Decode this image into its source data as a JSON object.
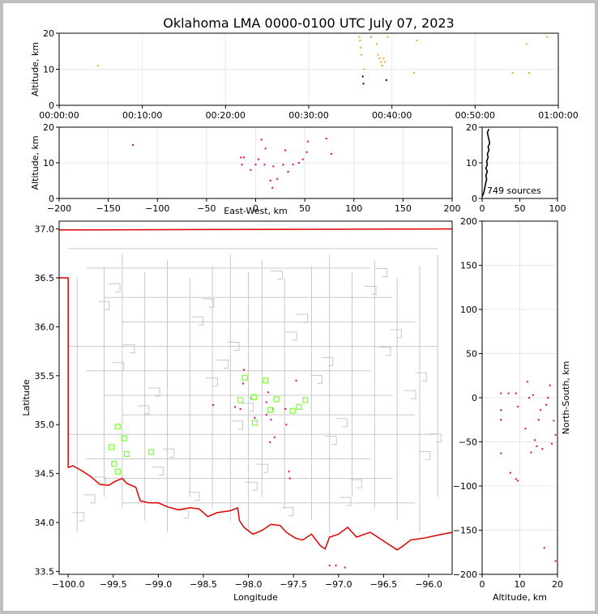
{
  "title": "Oklahoma LMA 0000-0100 UTC July 07, 2023",
  "colors": {
    "frame": "#c0c0c0",
    "state_border": "#e00000",
    "county": "#c8c8c8",
    "station": "#80ff40",
    "source": "#e0006a",
    "early_source": "#ffa030",
    "grid": "#e8e8e8"
  },
  "chart_data": [
    {
      "id": "time-altitude",
      "type": "scatter",
      "ylabel": "Altitude, km",
      "xlim": [
        "00:00:00",
        "01:00:00"
      ],
      "x_ticks": [
        "00:00:00",
        "00:10:00",
        "00:20:00",
        "00:30:00",
        "00:40:00",
        "00:50:00",
        "01:00:00"
      ],
      "ylim": [
        0,
        20
      ],
      "y_ticks": [
        "0",
        "10",
        "20"
      ],
      "points": [
        {
          "t": "00:04:40",
          "alt": 11
        },
        {
          "t": "00:36:05",
          "alt": 19
        },
        {
          "t": "00:36:10",
          "alt": 18
        },
        {
          "t": "00:36:15",
          "alt": 16
        },
        {
          "t": "00:36:20",
          "alt": 14
        },
        {
          "t": "00:36:30",
          "alt": 8
        },
        {
          "t": "00:36:35",
          "alt": 6
        },
        {
          "t": "00:36:40",
          "alt": 10
        },
        {
          "t": "00:37:30",
          "alt": 19
        },
        {
          "t": "00:38:10",
          "alt": 17
        },
        {
          "t": "00:38:20",
          "alt": 14
        },
        {
          "t": "00:38:30",
          "alt": 13
        },
        {
          "t": "00:38:40",
          "alt": 12
        },
        {
          "t": "00:38:50",
          "alt": 11
        },
        {
          "t": "00:39:00",
          "alt": 13
        },
        {
          "t": "00:39:10",
          "alt": 12
        },
        {
          "t": "00:39:20",
          "alt": 7
        },
        {
          "t": "00:39:30",
          "alt": 19
        },
        {
          "t": "00:42:40",
          "alt": 9
        },
        {
          "t": "00:43:00",
          "alt": 18
        },
        {
          "t": "00:54:30",
          "alt": 9
        },
        {
          "t": "00:56:10",
          "alt": 17
        },
        {
          "t": "00:58:40",
          "alt": 19
        },
        {
          "t": "00:56:30",
          "alt": 9
        }
      ]
    },
    {
      "id": "ew-altitude",
      "type": "scatter",
      "xlabel": "East-West, km",
      "ylabel": "Altitude, km",
      "xlim": [
        -200,
        200
      ],
      "x_ticks": [
        "−200",
        "−150",
        "−100",
        "−50",
        "0",
        "50",
        "100",
        "150",
        "200"
      ],
      "ylim": [
        0,
        20
      ],
      "y_ticks": [
        "0",
        "10",
        "20"
      ],
      "points": [
        {
          "ew": -125,
          "alt": 15
        },
        {
          "ew": -15,
          "alt": 11.5
        },
        {
          "ew": -12,
          "alt": 11.5
        },
        {
          "ew": -14,
          "alt": 9.5
        },
        {
          "ew": -5,
          "alt": 8
        },
        {
          "ew": 0,
          "alt": 9.5
        },
        {
          "ew": 3,
          "alt": 11
        },
        {
          "ew": 6,
          "alt": 16.5
        },
        {
          "ew": 9,
          "alt": 9.5
        },
        {
          "ew": 10,
          "alt": 14
        },
        {
          "ew": 15,
          "alt": 5
        },
        {
          "ew": 17,
          "alt": 3
        },
        {
          "ew": 18,
          "alt": 9
        },
        {
          "ew": 22,
          "alt": 5.5
        },
        {
          "ew": 28,
          "alt": 9.5
        },
        {
          "ew": 30,
          "alt": 13.5
        },
        {
          "ew": 33,
          "alt": 7.5
        },
        {
          "ew": 38,
          "alt": 9.5
        },
        {
          "ew": 44,
          "alt": 10
        },
        {
          "ew": 48,
          "alt": 11
        },
        {
          "ew": 52,
          "alt": 13
        },
        {
          "ew": 53,
          "alt": 16
        },
        {
          "ew": 72,
          "alt": 16.8
        },
        {
          "ew": 77,
          "alt": 12.5
        }
      ]
    },
    {
      "id": "altitude-histogram",
      "type": "line",
      "xlim": [
        0,
        100
      ],
      "x_ticks": [
        "0",
        "50",
        "100"
      ],
      "ylim": [
        0,
        20
      ],
      "y_ticks": [
        "0",
        "10",
        "20"
      ],
      "annotation": "749 sources",
      "profile": [
        {
          "alt": 0.5,
          "count": 0
        },
        {
          "alt": 1.5,
          "count": 2
        },
        {
          "alt": 2.5,
          "count": 3
        },
        {
          "alt": 3.5,
          "count": 4
        },
        {
          "alt": 4.5,
          "count": 5
        },
        {
          "alt": 5.5,
          "count": 6
        },
        {
          "alt": 6.5,
          "count": 5
        },
        {
          "alt": 7.5,
          "count": 7
        },
        {
          "alt": 8.5,
          "count": 5
        },
        {
          "alt": 9.5,
          "count": 7
        },
        {
          "alt": 10.5,
          "count": 6
        },
        {
          "alt": 11.5,
          "count": 8
        },
        {
          "alt": 12.5,
          "count": 7
        },
        {
          "alt": 13.5,
          "count": 9
        },
        {
          "alt": 14.5,
          "count": 8
        },
        {
          "alt": 15.5,
          "count": 10
        },
        {
          "alt": 16.5,
          "count": 9
        },
        {
          "alt": 17.5,
          "count": 8
        },
        {
          "alt": 18.5,
          "count": 7
        },
        {
          "alt": 19.5,
          "count": 9
        }
      ]
    },
    {
      "id": "plan-view",
      "type": "scatter",
      "xlabel": "Longitude",
      "ylabel": "Latitude",
      "xlim": [
        -100.1,
        -95.74
      ],
      "x_ticks": [
        "−100.0",
        "−99.5",
        "−99.0",
        "−98.5",
        "−98.0",
        "−97.5",
        "−97.0",
        "−96.5",
        "−96.0"
      ],
      "ylim": [
        33.47,
        37.08
      ],
      "y_ticks": [
        "33.5",
        "34.0",
        "34.5",
        "35.0",
        "35.5",
        "36.0",
        "36.5",
        "37.0"
      ],
      "stations": [
        {
          "lon": -99.45,
          "lat": 34.98
        },
        {
          "lon": -99.38,
          "lat": 34.86
        },
        {
          "lon": -99.52,
          "lat": 34.77
        },
        {
          "lon": -99.35,
          "lat": 34.7
        },
        {
          "lon": -99.49,
          "lat": 34.6
        },
        {
          "lon": -99.45,
          "lat": 34.52
        },
        {
          "lon": -99.08,
          "lat": 34.72
        },
        {
          "lon": -98.04,
          "lat": 35.48
        },
        {
          "lon": -98.09,
          "lat": 35.25
        },
        {
          "lon": -97.94,
          "lat": 35.28
        },
        {
          "lon": -97.93,
          "lat": 35.02
        },
        {
          "lon": -97.81,
          "lat": 35.45
        },
        {
          "lon": -97.76,
          "lat": 35.15
        },
        {
          "lon": -97.69,
          "lat": 35.26
        },
        {
          "lon": -97.51,
          "lat": 35.14
        },
        {
          "lon": -97.44,
          "lat": 35.18
        },
        {
          "lon": -97.37,
          "lat": 35.25
        }
      ],
      "sources": [
        {
          "lon": -98.39,
          "lat": 35.2
        },
        {
          "lon": -98.15,
          "lat": 35.18
        },
        {
          "lon": -98.09,
          "lat": 35.16
        },
        {
          "lon": -98.06,
          "lat": 35.42
        },
        {
          "lon": -98.05,
          "lat": 35.56
        },
        {
          "lon": -97.97,
          "lat": 35.27
        },
        {
          "lon": -97.93,
          "lat": 35.07
        },
        {
          "lon": -97.8,
          "lat": 35.23
        },
        {
          "lon": -97.8,
          "lat": 35.1
        },
        {
          "lon": -97.78,
          "lat": 35.33
        },
        {
          "lon": -97.76,
          "lat": 34.82
        },
        {
          "lon": -97.75,
          "lat": 35.05
        },
        {
          "lon": -97.73,
          "lat": 35.16
        },
        {
          "lon": -97.71,
          "lat": 34.87
        },
        {
          "lon": -97.59,
          "lat": 35.16
        },
        {
          "lon": -97.58,
          "lat": 35.0
        },
        {
          "lon": -97.55,
          "lat": 34.52
        },
        {
          "lon": -97.54,
          "lat": 34.45
        },
        {
          "lon": -97.47,
          "lat": 35.45
        },
        {
          "lon": -97.1,
          "lat": 33.56
        },
        {
          "lon": -97.03,
          "lat": 33.56
        },
        {
          "lon": -96.93,
          "lat": 33.54
        }
      ]
    },
    {
      "id": "altitude-ns",
      "type": "scatter",
      "xlabel": "Altitude, km",
      "ylabel": "North-South, km",
      "xlim": [
        0,
        20
      ],
      "x_ticks": [
        "0",
        "10",
        "20"
      ],
      "ylim": [
        -200,
        200
      ],
      "y_ticks": [
        "−200",
        "−150",
        "−100",
        "−50",
        "0",
        "50",
        "100",
        "150",
        "200"
      ],
      "points": [
        {
          "alt": 5,
          "ns": 5
        },
        {
          "alt": 5,
          "ns": -14
        },
        {
          "alt": 5,
          "ns": -25
        },
        {
          "alt": 5,
          "ns": -63
        },
        {
          "alt": 7,
          "ns": 5
        },
        {
          "alt": 7.5,
          "ns": -85
        },
        {
          "alt": 9,
          "ns": 5
        },
        {
          "alt": 9,
          "ns": -92
        },
        {
          "alt": 9.5,
          "ns": -10
        },
        {
          "alt": 9.5,
          "ns": -94
        },
        {
          "alt": 11.5,
          "ns": -35
        },
        {
          "alt": 12,
          "ns": 18
        },
        {
          "alt": 12.5,
          "ns": 0
        },
        {
          "alt": 13,
          "ns": -62
        },
        {
          "alt": 13.5,
          "ns": 3
        },
        {
          "alt": 14,
          "ns": -48
        },
        {
          "alt": 14.5,
          "ns": -55
        },
        {
          "alt": 15,
          "ns": -25
        },
        {
          "alt": 15.5,
          "ns": -14
        },
        {
          "alt": 16,
          "ns": -58
        },
        {
          "alt": 16.5,
          "ns": -170
        },
        {
          "alt": 17,
          "ns": -8
        },
        {
          "alt": 17.5,
          "ns": 0
        },
        {
          "alt": 18,
          "ns": 14
        },
        {
          "alt": 18.5,
          "ns": -52
        },
        {
          "alt": 19,
          "ns": -26
        },
        {
          "alt": 19.5,
          "ns": -42
        },
        {
          "alt": 19.5,
          "ns": -185
        }
      ]
    }
  ]
}
